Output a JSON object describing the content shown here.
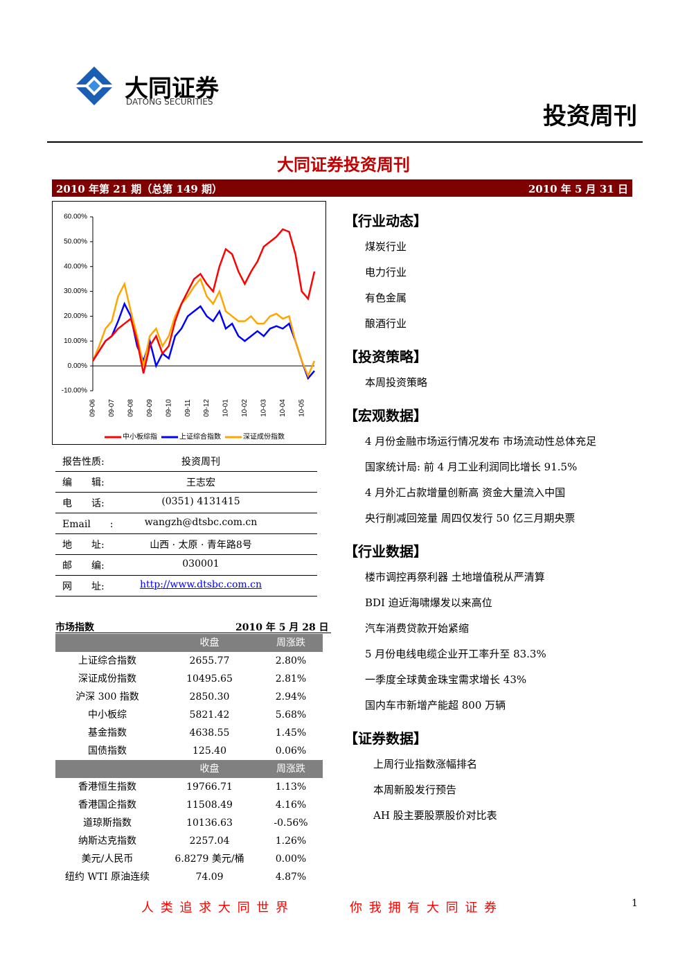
{
  "header": {
    "logo_cn": "大同证券",
    "logo_en": "DATONG SECURITIES",
    "doc_type": "投资周刊"
  },
  "title": "大同证券投资周刊",
  "issue_bar": {
    "issue": "2010 年第 21 期（总第 149 期）",
    "date": "2010 年 5 月 31 日"
  },
  "chart_data": {
    "type": "line",
    "categories": [
      "09-06",
      null,
      null,
      "09-07",
      null,
      null,
      "09-08",
      null,
      null,
      "09-09",
      null,
      null,
      "09-10",
      null,
      null,
      "09-11",
      null,
      null,
      "09-12",
      null,
      null,
      "10-01",
      null,
      null,
      "10-02",
      null,
      null,
      "10-03",
      null,
      null,
      "10-04",
      null,
      null,
      "10-05",
      null,
      null
    ],
    "series": [
      {
        "name": "中小板综指",
        "color": "#ff0000",
        "values": [
          2,
          6,
          10,
          12,
          15,
          17,
          19,
          10,
          -3,
          8,
          12,
          5,
          8,
          18,
          25,
          30,
          35,
          37,
          33,
          30,
          40,
          47,
          45,
          38,
          33,
          38,
          42,
          48,
          50,
          52,
          55,
          54,
          45,
          30,
          27,
          38
        ]
      },
      {
        "name": "上证综合指数",
        "color": "#0000ff",
        "values": [
          2,
          6,
          10,
          12,
          18,
          25,
          20,
          8,
          2,
          10,
          0,
          5,
          3,
          12,
          15,
          20,
          22,
          24,
          20,
          18,
          22,
          15,
          17,
          12,
          10,
          12,
          14,
          12,
          15,
          16,
          15,
          17,
          10,
          2,
          -5,
          -2
        ]
      },
      {
        "name": "深证成份指数",
        "color": "#ffa500",
        "values": [
          2,
          8,
          15,
          18,
          28,
          33,
          22,
          12,
          0,
          12,
          15,
          8,
          12,
          20,
          25,
          28,
          32,
          35,
          28,
          25,
          30,
          22,
          20,
          18,
          18,
          20,
          17,
          17,
          20,
          21,
          19,
          20,
          10,
          2,
          -4,
          2
        ]
      }
    ],
    "ylim": [
      -10,
      60
    ],
    "yticks": [
      {
        "value": -10,
        "label": "-10.00%"
      },
      {
        "value": 0,
        "label": "0.00%"
      },
      {
        "value": 10,
        "label": "10.00%"
      },
      {
        "value": 20,
        "label": "20.00%"
      },
      {
        "value": 30,
        "label": "30.00%"
      },
      {
        "value": 40,
        "label": "40.00%"
      },
      {
        "value": 50,
        "label": "50.00%"
      },
      {
        "value": 60,
        "label": "60.00%"
      }
    ],
    "legend": "bottom"
  },
  "report_info": [
    [
      "报告性质:",
      "投资周刊"
    ],
    [
      "编　　辑:",
      "王志宏"
    ],
    [
      "电　　话:",
      "(0351) 4131415"
    ],
    [
      "Email　　:",
      "wangzh@dtsbc.com.cn"
    ],
    [
      "地　　址:",
      "山西 · 太原 · 青年路8号"
    ],
    [
      "邮　　编:",
      "030001"
    ],
    [
      "网　　址:",
      "http://www.dtsbc.com.cn"
    ]
  ],
  "market_table": {
    "title": "市场指数",
    "date": "2010 年 5 月 28 日",
    "header1": [
      "收盘",
      "周涨跌"
    ],
    "rows1": [
      [
        "上证综合指数",
        "2655.77",
        "2.80%"
      ],
      [
        "深证成份指数",
        "10495.65",
        "2.81%"
      ],
      [
        "沪深 300 指数",
        "2850.30",
        "2.94%"
      ],
      [
        "中小板综",
        "5821.42",
        "5.68%"
      ],
      [
        "基金指数",
        "4638.55",
        "1.45%"
      ],
      [
        "国债指数",
        "125.40",
        "0.06%"
      ]
    ],
    "header2": [
      "收盘",
      "周涨跌"
    ],
    "rows2": [
      [
        "香港恒生指数",
        "19766.71",
        "1.13%"
      ],
      [
        "香港国企指数",
        "11508.49",
        "4.16%"
      ],
      [
        "道琼斯指数",
        "10136.63",
        "-0.56%"
      ],
      [
        "纳斯达克指数",
        "2257.04",
        "1.26%"
      ],
      [
        "美元/人民币",
        "6.8279 美元/桶",
        "0.00%"
      ],
      [
        "纽约 WTI 原油连续",
        "74.09",
        "4.87%"
      ]
    ]
  },
  "sections": [
    {
      "heading": "【行业动态】",
      "items": [
        "煤炭行业",
        "电力行业",
        "有色金属",
        "酿酒行业"
      ]
    },
    {
      "heading": "【投资策略】",
      "items": [
        "本周投资策略"
      ]
    },
    {
      "heading": "【宏观数据】",
      "items": [
        "4 月份金融市场运行情况发布 市场流动性总体充足",
        "国家统计局: 前 4 月工业利润同比增长 91.5%",
        "4 月外汇占款增量创新高 资金大量流入中国",
        "央行削减回笼量 周四仅发行 50 亿三月期央票"
      ]
    },
    {
      "heading": "【行业数据】",
      "items": [
        "楼市调控再祭利器 土地增值税从严清算",
        "BDI 迫近海啸爆发以来高位",
        "汽车消费贷款开始紧缩",
        "5 月份电线电缆企业开工率升至 83.3%",
        "一季度全球黄金珠宝需求增长 43%",
        "国内车市新增产能超 800 万辆"
      ]
    },
    {
      "heading": "【证券数据】",
      "items": [
        "上周行业指数涨幅排名",
        "本周新股发行预告",
        "AH 股主要股票股价对比表"
      ]
    }
  ],
  "footer": {
    "slogan_left": "人 类 追 求 大 同 世 界",
    "slogan_right": "你 我 拥 有 大 同 证 券",
    "page": "1"
  }
}
